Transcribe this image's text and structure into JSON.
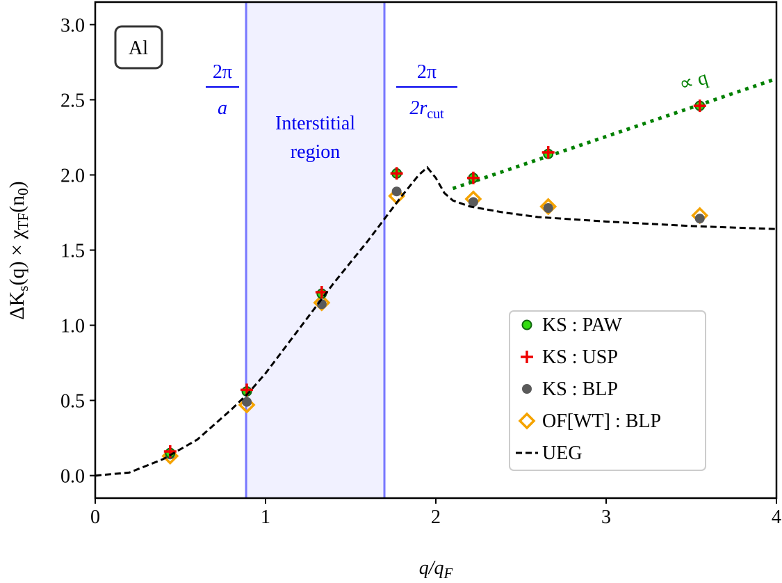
{
  "chart_data": {
    "type": "scatter",
    "xlabel": [
      "q/q",
      "F"
    ],
    "ylabel": [
      "ΔK",
      "s",
      "(q) × χ",
      "TF",
      "(n",
      "0",
      ")"
    ],
    "xlim": [
      0,
      4
    ],
    "ylim": [
      -0.15,
      3.15
    ],
    "xticks": [
      0,
      1,
      2,
      3,
      4
    ],
    "yticks": [
      {
        "value": 0,
        "label": "0.0"
      },
      {
        "value": 0.5,
        "label": "0.5"
      },
      {
        "value": 1,
        "label": "1.0"
      },
      {
        "value": 1.5,
        "label": "1.5"
      },
      {
        "value": 2,
        "label": "2.0"
      },
      {
        "value": 2.5,
        "label": "2.5"
      },
      {
        "value": 3,
        "label": "3.0"
      }
    ],
    "x": [
      0.44,
      0.89,
      1.33,
      1.77,
      2.22,
      2.66,
      3.55
    ],
    "series": [
      {
        "name": "OF[WT] : BLP",
        "color": "#f5a300",
        "marker": "diamond",
        "values": [
          0.13,
          0.47,
          1.15,
          1.86,
          1.84,
          1.79,
          1.73
        ]
      },
      {
        "name": "KS : BLP",
        "color": "#5a5a5a",
        "marker": "dot",
        "values": [
          0.14,
          0.49,
          1.14,
          1.89,
          1.82,
          1.78,
          1.71
        ]
      },
      {
        "name": "KS : PAW",
        "color": "#33dd11",
        "marker": "circle",
        "values": [
          0.15,
          0.56,
          1.21,
          2.01,
          1.98,
          2.14,
          2.46
        ]
      },
      {
        "name": "KS : USP",
        "color": "#ee0000",
        "marker": "plus",
        "values": [
          0.16,
          0.57,
          1.22,
          2.01,
          1.98,
          2.15,
          2.46
        ]
      },
      {
        "name": "UEG",
        "color": "#000000",
        "marker": "dashed-line",
        "x": [
          0,
          0.2,
          0.4,
          0.6,
          0.8,
          0.9,
          1.0,
          1.2,
          1.4,
          1.6,
          1.8,
          1.9,
          1.95,
          2.0,
          2.05,
          2.1,
          2.2,
          2.4,
          2.6,
          3.0,
          3.5,
          4.0
        ],
        "values": [
          0,
          0.02,
          0.11,
          0.24,
          0.44,
          0.55,
          0.68,
          0.98,
          1.28,
          1.56,
          1.86,
          2.0,
          2.05,
          1.98,
          1.88,
          1.83,
          1.79,
          1.75,
          1.72,
          1.69,
          1.66,
          1.64
        ]
      }
    ],
    "legend_order": [
      2,
      3,
      1,
      0,
      4
    ],
    "legend": "lower right",
    "fit_line": {
      "x": [
        2.1,
        4
      ],
      "y": [
        1.91,
        2.64
      ],
      "color": "#008000",
      "label": "∝ q"
    },
    "region": {
      "x": [
        0.886,
        1.698
      ],
      "color": "#7777ff",
      "labels": [
        "Interstitial",
        "region"
      ],
      "left_label": [
        "2π",
        "a"
      ],
      "right_label": [
        "2π",
        "2r",
        "cut"
      ]
    },
    "panel_label": "Al"
  }
}
